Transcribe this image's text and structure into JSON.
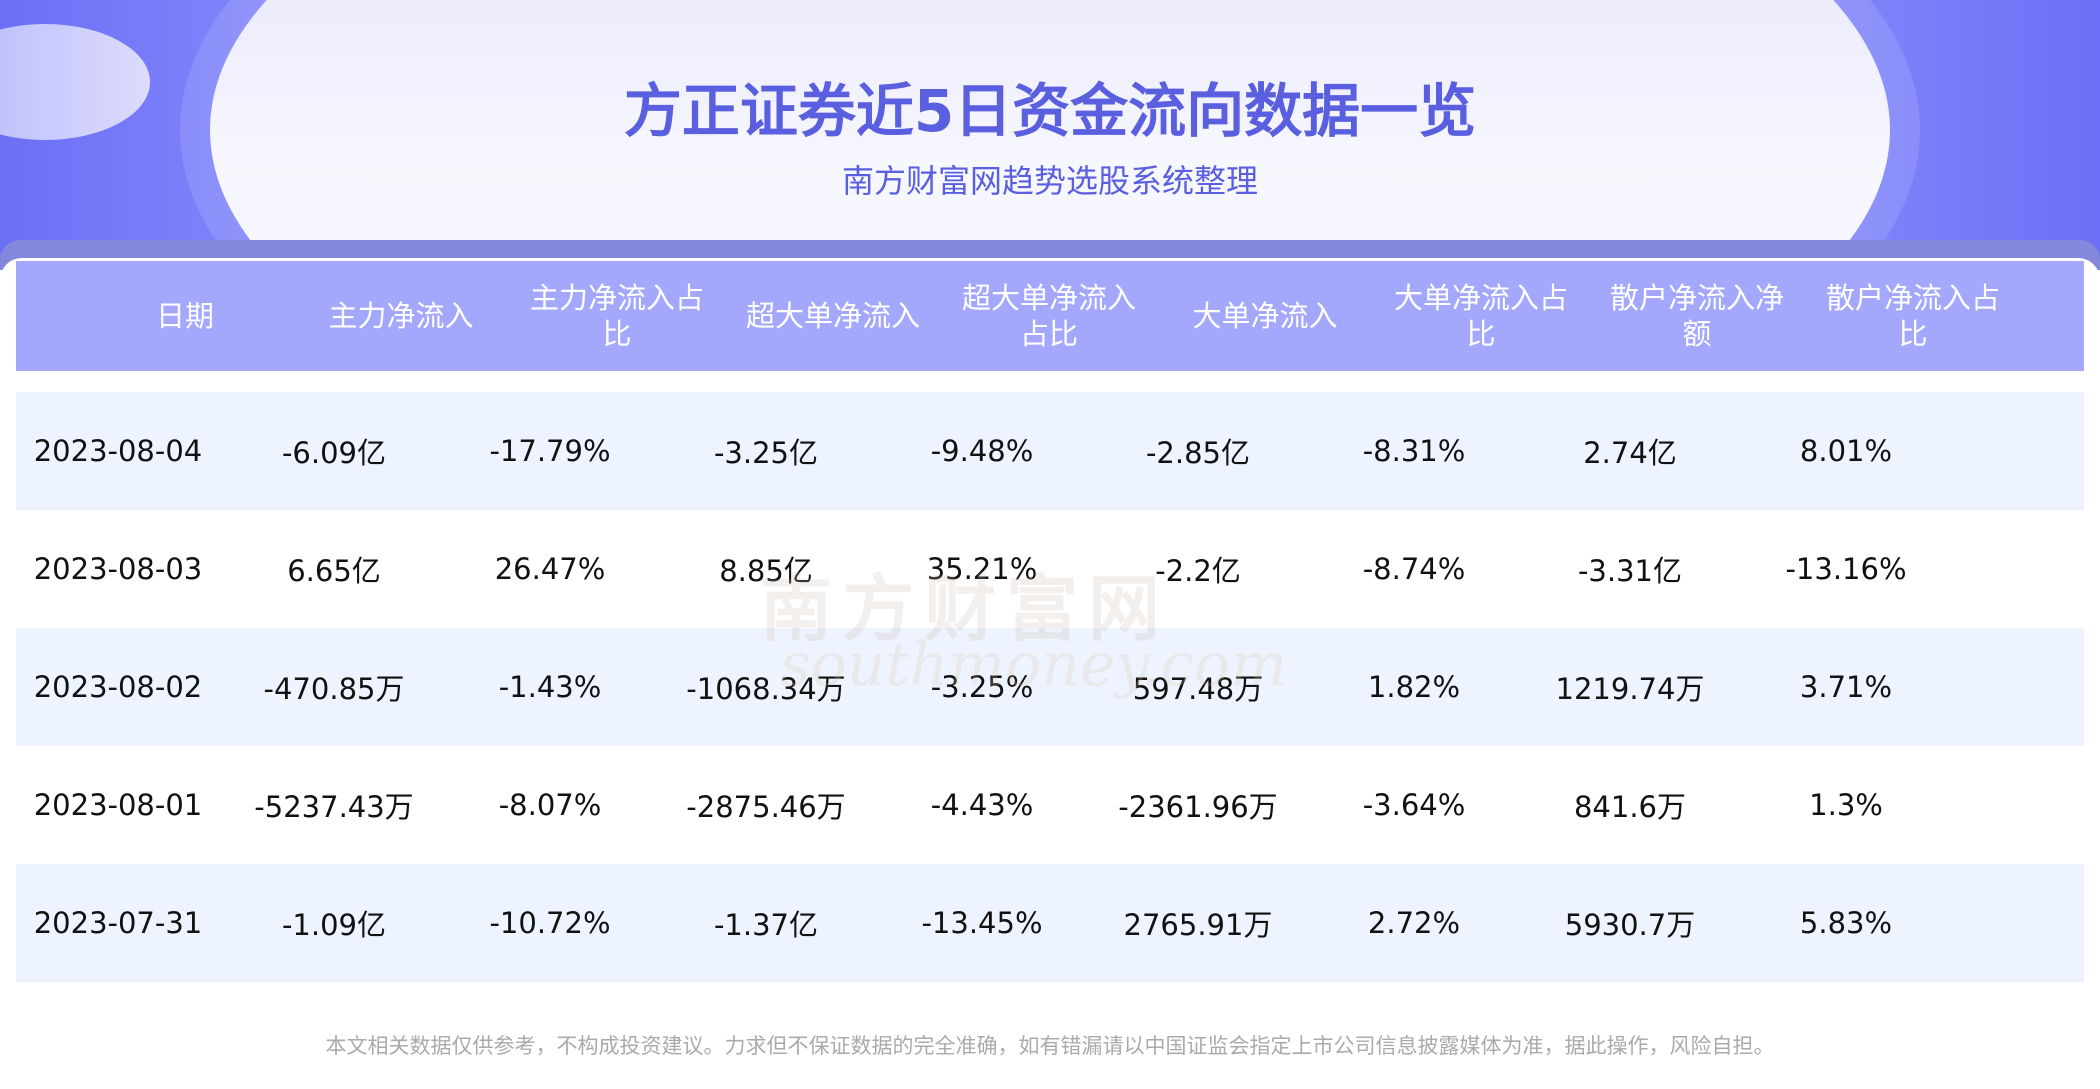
{
  "title": "方正证券近5日资金流向数据一览",
  "subtitle": "南方财富网趋势选股系统整理",
  "watermark": "南方财富网 southmoney.com",
  "headers": [
    "日期",
    "主力净流入",
    "主力净流入占比",
    "超大单净流入",
    "超大单净流入占比",
    "大单净流入",
    "大单净流入占比",
    "散户净流入净额",
    "散户净流入占比"
  ],
  "rows": [
    [
      "2023-08-04",
      "-6.09亿",
      "-17.79%",
      "-3.25亿",
      "-9.48%",
      "-2.85亿",
      "-8.31%",
      "2.74亿",
      "8.01%"
    ],
    [
      "2023-08-03",
      "6.65亿",
      "26.47%",
      "8.85亿",
      "35.21%",
      "-2.2亿",
      "-8.74%",
      "-3.31亿",
      "-13.16%"
    ],
    [
      "2023-08-02",
      "-470.85万",
      "-1.43%",
      "-1068.34万",
      "-3.25%",
      "597.48万",
      "1.82%",
      "1219.74万",
      "3.71%"
    ],
    [
      "2023-08-01",
      "-5237.43万",
      "-8.07%",
      "-2875.46万",
      "-4.43%",
      "-2361.96万",
      "-3.64%",
      "841.6万",
      "1.3%"
    ],
    [
      "2023-07-31",
      "-1.09亿",
      "-10.72%",
      "-1.37亿",
      "-13.45%",
      "2765.91万",
      "2.72%",
      "5930.7万",
      "5.83%"
    ]
  ],
  "footer": "本文相关数据仅供参考，不构成投资建议。力求但不保证数据的完全准确，如有错漏请以中国证监会指定上市公司信息披露媒体为准，据此操作，风险自担。",
  "colors": {
    "accent": "#5a5fe0",
    "header_bg": "#a4a8fc",
    "row_alt": "#eef4ff"
  }
}
